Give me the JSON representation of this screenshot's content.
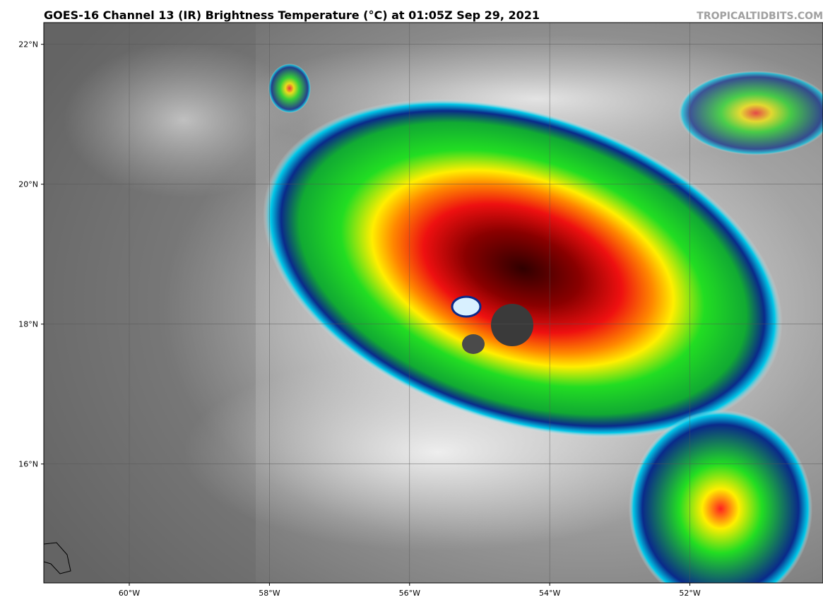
{
  "map": {
    "title": "GOES-16 Channel 13 (IR) Brightness Temperature (°C) at 01:05Z Sep 29, 2021",
    "watermark": "TROPICALTIDBITS.COM",
    "xlim": [
      -61.22,
      -50.1
    ],
    "ylim": [
      14.3,
      22.31
    ],
    "xticks": [
      {
        "value": -60,
        "label": "60°W"
      },
      {
        "value": -58,
        "label": "58°W"
      },
      {
        "value": -56,
        "label": "56°W"
      },
      {
        "value": -54,
        "label": "54°W"
      },
      {
        "value": -52,
        "label": "52°W"
      }
    ],
    "yticks": [
      {
        "value": 16,
        "label": "16°N"
      },
      {
        "value": 18,
        "label": "18°N"
      },
      {
        "value": 20,
        "label": "20°N"
      },
      {
        "value": 22,
        "label": "22°N"
      }
    ]
  }
}
